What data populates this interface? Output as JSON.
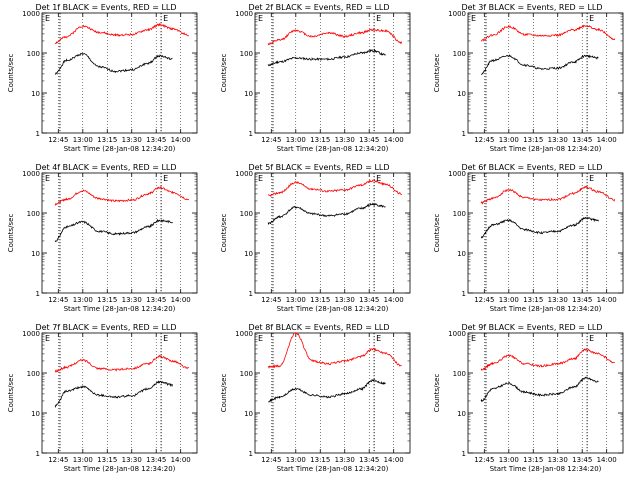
{
  "figure": {
    "x_tick_labels": [
      "12:45",
      "13:00",
      "13:15",
      "13:30",
      "13:45",
      "14:00"
    ],
    "y_tick_labels": [
      "1",
      "10",
      "100",
      "1000"
    ],
    "marker_labels": [
      "E",
      "E"
    ],
    "colors": {
      "events": "#000000",
      "lld": "#ff0000",
      "axes": "#000000"
    }
  },
  "chart_data": [
    {
      "type": "line",
      "title": "Det 1f BLACK = Events, RED = LLD",
      "xlabel": "Start Time (28-Jan-08 12:34:20)",
      "ylabel": "Counts/sec",
      "x_unit": "time",
      "xlim": [
        "12:35",
        "14:10"
      ],
      "ylim": [
        1,
        1000
      ],
      "y_scale": "log",
      "grid": "dotted",
      "markers": [
        "12:46",
        "13:48"
      ],
      "x": [
        "12:43",
        "12:50",
        "13:00",
        "13:10",
        "13:20",
        "13:30",
        "13:40",
        "13:47",
        "13:55",
        "14:05"
      ],
      "series": [
        {
          "name": "Events",
          "color": "#000000",
          "values": [
            30,
            65,
            95,
            45,
            35,
            38,
            55,
            85,
            70,
            null
          ]
        },
        {
          "name": "LLD",
          "color": "#ff0000",
          "values": [
            180,
            260,
            470,
            330,
            280,
            290,
            380,
            510,
            400,
            280
          ]
        }
      ]
    },
    {
      "type": "line",
      "title": "Det 2f BLACK = Events, RED = LLD",
      "xlabel": "Start Time (28-Jan-08 12:34:20)",
      "ylabel": "Counts/sec",
      "x_unit": "time",
      "xlim": [
        "12:35",
        "14:10"
      ],
      "ylim": [
        1,
        1000
      ],
      "y_scale": "log",
      "grid": "dotted",
      "markers": [
        "12:46",
        "13:48"
      ],
      "x": [
        "12:43",
        "12:50",
        "13:00",
        "13:10",
        "13:20",
        "13:30",
        "13:40",
        "13:47",
        "13:55",
        "14:05"
      ],
      "series": [
        {
          "name": "Events",
          "color": "#000000",
          "values": [
            50,
            60,
            75,
            70,
            70,
            80,
            100,
            115,
            90,
            null
          ]
        },
        {
          "name": "LLD",
          "color": "#ff0000",
          "values": [
            170,
            210,
            370,
            260,
            320,
            260,
            320,
            380,
            360,
            180
          ]
        }
      ]
    },
    {
      "type": "line",
      "title": "Det 3f BLACK = Events, RED = LLD",
      "xlabel": "Start Time (28-Jan-08 12:34:20)",
      "ylabel": "Counts/sec",
      "x_unit": "time",
      "xlim": [
        "12:35",
        "14:10"
      ],
      "ylim": [
        1,
        1000
      ],
      "y_scale": "log",
      "grid": "dotted",
      "markers": [
        "12:46",
        "13:48"
      ],
      "x": [
        "12:43",
        "12:50",
        "13:00",
        "13:10",
        "13:20",
        "13:30",
        "13:40",
        "13:47",
        "13:55",
        "14:05"
      ],
      "series": [
        {
          "name": "Events",
          "color": "#000000",
          "values": [
            30,
            65,
            85,
            50,
            40,
            42,
            60,
            85,
            75,
            null
          ]
        },
        {
          "name": "LLD",
          "color": "#ff0000",
          "values": [
            210,
            280,
            460,
            290,
            270,
            280,
            380,
            480,
            380,
            220
          ]
        }
      ]
    },
    {
      "type": "line",
      "title": "Det 4f BLACK = Events, RED = LLD",
      "xlabel": "Start Time (28-Jan-08 12:34:20)",
      "ylabel": "Counts/sec",
      "x_unit": "time",
      "xlim": [
        "12:35",
        "14:10"
      ],
      "ylim": [
        1,
        1000
      ],
      "y_scale": "log",
      "grid": "dotted",
      "markers": [
        "12:46",
        "13:48"
      ],
      "x": [
        "12:43",
        "12:50",
        "13:00",
        "13:10",
        "13:20",
        "13:30",
        "13:40",
        "13:47",
        "13:55",
        "14:05"
      ],
      "series": [
        {
          "name": "Events",
          "color": "#000000",
          "values": [
            20,
            45,
            60,
            35,
            30,
            32,
            45,
            65,
            60,
            null
          ]
        },
        {
          "name": "LLD",
          "color": "#ff0000",
          "values": [
            170,
            220,
            360,
            230,
            200,
            210,
            300,
            430,
            330,
            220
          ]
        }
      ]
    },
    {
      "type": "line",
      "title": "Det 5f BLACK = Events, RED = LLD",
      "xlabel": "Start Time (28-Jan-08 12:34:20)",
      "ylabel": "Counts/sec",
      "x_unit": "time",
      "xlim": [
        "12:35",
        "14:10"
      ],
      "ylim": [
        1,
        1000
      ],
      "y_scale": "log",
      "grid": "dotted",
      "markers": [
        "12:46",
        "13:48"
      ],
      "x": [
        "12:43",
        "12:50",
        "13:00",
        "13:10",
        "13:20",
        "13:30",
        "13:40",
        "13:47",
        "13:55",
        "14:05"
      ],
      "series": [
        {
          "name": "Events",
          "color": "#000000",
          "values": [
            55,
            80,
            140,
            95,
            85,
            95,
            130,
            165,
            145,
            null
          ]
        },
        {
          "name": "LLD",
          "color": "#ff0000",
          "values": [
            270,
            320,
            580,
            400,
            350,
            380,
            500,
            640,
            520,
            300
          ]
        }
      ]
    },
    {
      "type": "line",
      "title": "Det 6f BLACK = Events, RED = LLD",
      "xlabel": "Start Time (28-Jan-08 12:34:20)",
      "ylabel": "Counts/sec",
      "x_unit": "time",
      "xlim": [
        "12:35",
        "14:10"
      ],
      "ylim": [
        1,
        1000
      ],
      "y_scale": "log",
      "grid": "dotted",
      "markers": [
        "12:46",
        "13:48"
      ],
      "x": [
        "12:43",
        "12:50",
        "13:00",
        "13:10",
        "13:20",
        "13:30",
        "13:40",
        "13:47",
        "13:55",
        "14:05"
      ],
      "series": [
        {
          "name": "Events",
          "color": "#000000",
          "values": [
            25,
            50,
            65,
            38,
            32,
            35,
            50,
            75,
            65,
            null
          ]
        },
        {
          "name": "LLD",
          "color": "#ff0000",
          "values": [
            180,
            230,
            380,
            240,
            210,
            220,
            310,
            440,
            340,
            210
          ]
        }
      ]
    },
    {
      "type": "line",
      "title": "Det 7f BLACK = Events, RED = LLD",
      "xlabel": "Start Time (28-Jan-08 12:34:20)",
      "ylabel": "Counts/sec",
      "x_unit": "time",
      "xlim": [
        "12:35",
        "14:10"
      ],
      "ylim": [
        1,
        1000
      ],
      "y_scale": "log",
      "grid": "dotted",
      "markers": [
        "12:46",
        "13:48"
      ],
      "x": [
        "12:43",
        "12:50",
        "13:00",
        "13:10",
        "13:20",
        "13:30",
        "13:40",
        "13:47",
        "13:55",
        "14:05"
      ],
      "series": [
        {
          "name": "Events",
          "color": "#000000",
          "values": [
            15,
            35,
            45,
            28,
            25,
            27,
            40,
            60,
            50,
            null
          ]
        },
        {
          "name": "LLD",
          "color": "#ff0000",
          "values": [
            110,
            140,
            210,
            130,
            120,
            130,
            170,
            260,
            200,
            130
          ]
        }
      ]
    },
    {
      "type": "line",
      "title": "Det 8f BLACK = Events, RED = LLD",
      "xlabel": "Start Time (28-Jan-08 12:34:20)",
      "ylabel": "Counts/sec",
      "x_unit": "time",
      "xlim": [
        "12:35",
        "14:10"
      ],
      "ylim": [
        1,
        1000
      ],
      "y_scale": "log",
      "grid": "dotted",
      "markers": [
        "12:46",
        "13:48"
      ],
      "x": [
        "12:43",
        "12:50",
        "13:00",
        "13:10",
        "13:20",
        "13:30",
        "13:40",
        "13:47",
        "13:55",
        "14:05"
      ],
      "series": [
        {
          "name": "Events",
          "color": "#000000",
          "values": [
            20,
            25,
            40,
            28,
            25,
            30,
            40,
            65,
            55,
            null
          ]
        },
        {
          "name": "LLD",
          "color": "#ff0000",
          "values": [
            140,
            150,
            1000,
            200,
            170,
            200,
            260,
            390,
            320,
            150
          ]
        }
      ]
    },
    {
      "type": "line",
      "title": "Det 9f BLACK = Events, RED = LLD",
      "xlabel": "Start Time (28-Jan-08 12:34:20)",
      "ylabel": "Counts/sec",
      "x_unit": "time",
      "xlim": [
        "12:35",
        "14:10"
      ],
      "ylim": [
        1,
        1000
      ],
      "y_scale": "log",
      "grid": "dotted",
      "markers": [
        "12:46",
        "13:48"
      ],
      "x": [
        "12:43",
        "12:50",
        "13:00",
        "13:10",
        "13:20",
        "13:30",
        "13:40",
        "13:47",
        "13:55",
        "14:05"
      ],
      "series": [
        {
          "name": "Events",
          "color": "#000000",
          "values": [
            20,
            40,
            55,
            33,
            28,
            30,
            45,
            75,
            60,
            null
          ]
        },
        {
          "name": "LLD",
          "color": "#ff0000",
          "values": [
            120,
            170,
            270,
            170,
            150,
            170,
            230,
            380,
            300,
            180
          ]
        }
      ]
    }
  ]
}
